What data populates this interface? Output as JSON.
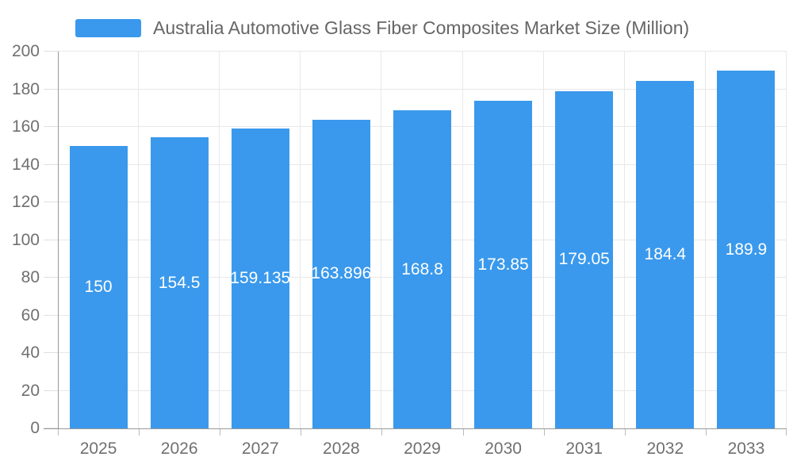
{
  "legend": {
    "label": "Australia Automotive Glass Fiber Composites Market Size (Million)"
  },
  "chart_data": {
    "type": "bar",
    "title": "Australia Automotive Glass Fiber Composites Market Size (Million)",
    "categories": [
      "2025",
      "2026",
      "2027",
      "2028",
      "2029",
      "2030",
      "2031",
      "2032",
      "2033"
    ],
    "values": [
      150,
      154.5,
      159.135,
      163.896,
      168.8,
      173.85,
      179.05,
      184.4,
      189.9
    ],
    "value_labels": [
      "150",
      "154.5",
      "159.135",
      "163.896",
      "168.8",
      "173.85",
      "179.05",
      "184.4",
      "189.9"
    ],
    "xlabel": "",
    "ylabel": "",
    "ylim": [
      0,
      200
    ],
    "y_ticks": [
      0,
      20,
      40,
      60,
      80,
      100,
      120,
      140,
      160,
      180,
      200
    ],
    "grid": true,
    "legend_position": "top",
    "value_label_position": "inside-center"
  },
  "colors": {
    "bar": "#3A99EC",
    "grid_line": "#E8E8E8",
    "axis_line": "#999999",
    "y_tick": "#E0E0E0",
    "x_tick": "#BBBBBB",
    "axis_label": "#707070",
    "value_label": "#FFFFFF",
    "legend_text": "#666666",
    "background": "#FFFFFF"
  }
}
